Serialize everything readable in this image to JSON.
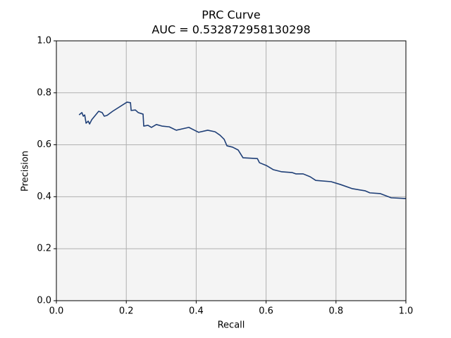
{
  "chart_data": {
    "type": "line",
    "title": "PRC Curve",
    "subtitle": "AUC = 0.532872958130298",
    "x_label": "Recall",
    "y_label": "Precision",
    "xlim": [
      0,
      1
    ],
    "ylim": [
      0,
      1
    ],
    "xticks": [
      {
        "value": 0,
        "label": "0.0"
      },
      0.2,
      0.4,
      0.6,
      0.8,
      {
        "value": 1,
        "label": "1.0"
      }
    ],
    "yticks": [
      {
        "value": 0,
        "label": "0.0"
      },
      0.2,
      0.4,
      0.6,
      0.8,
      {
        "value": 1,
        "label": "1.0"
      }
    ],
    "grid": true,
    "series": [
      {
        "color": "#1f3f77",
        "x": [
          0.065,
          0.073,
          0.077,
          0.081,
          0.085,
          0.091,
          0.095,
          0.101,
          0.121,
          0.131,
          0.137,
          0.145,
          0.161,
          0.202,
          0.212,
          0.214,
          0.226,
          0.234,
          0.248,
          0.25,
          0.262,
          0.272,
          0.286,
          0.302,
          0.323,
          0.343,
          0.379,
          0.395,
          0.407,
          0.433,
          0.454,
          0.468,
          0.48,
          0.488,
          0.504,
          0.52,
          0.534,
          0.575,
          0.581,
          0.601,
          0.621,
          0.645,
          0.675,
          0.685,
          0.706,
          0.726,
          0.742,
          0.786,
          0.813,
          0.847,
          0.883,
          0.897,
          0.927,
          0.958,
          1.0
        ],
        "values": [
          0.715,
          0.724,
          0.71,
          0.715,
          0.683,
          0.691,
          0.68,
          0.696,
          0.729,
          0.724,
          0.71,
          0.713,
          0.729,
          0.764,
          0.762,
          0.732,
          0.734,
          0.724,
          0.718,
          0.672,
          0.675,
          0.667,
          0.678,
          0.672,
          0.669,
          0.656,
          0.667,
          0.656,
          0.648,
          0.656,
          0.65,
          0.637,
          0.621,
          0.596,
          0.591,
          0.58,
          0.55,
          0.547,
          0.531,
          0.52,
          0.504,
          0.496,
          0.493,
          0.488,
          0.488,
          0.477,
          0.463,
          0.458,
          0.447,
          0.431,
          0.423,
          0.415,
          0.412,
          0.396,
          0.393
        ]
      }
    ]
  }
}
